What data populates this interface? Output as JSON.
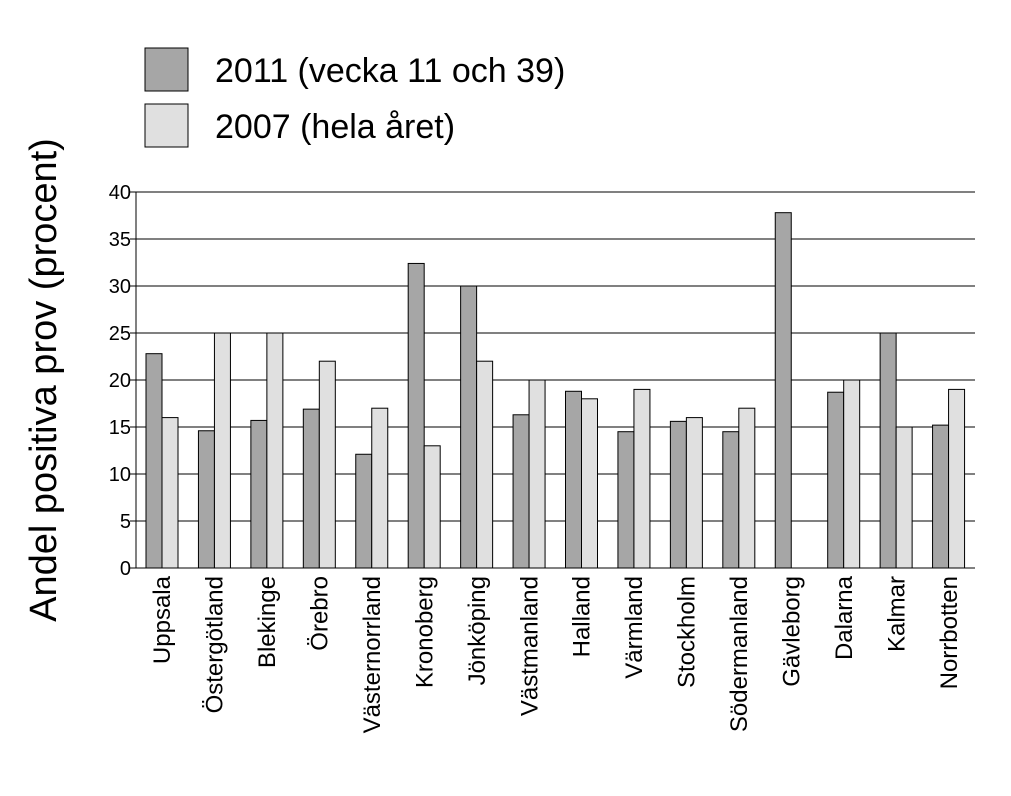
{
  "chart_data": {
    "type": "bar",
    "title": "",
    "xlabel": "",
    "ylabel": "Andel positiva prov (procent)",
    "ylim": [
      0,
      40
    ],
    "yticks": [
      0,
      5,
      10,
      15,
      20,
      25,
      30,
      35,
      40
    ],
    "grid": true,
    "legend_position": "top-left",
    "categories": [
      "Uppsala",
      "Östergötland",
      "Blekinge",
      "Örebro",
      "Västernorrland",
      "Kronoberg",
      "Jönköping",
      "Västmanland",
      "Halland",
      "Värmland",
      "Stockholm",
      "Södermanland",
      "Gävleborg",
      "Dalarna",
      "Kalmar",
      "Norrbotten"
    ],
    "series": [
      {
        "name": "2011 (vecka 11 och 39)",
        "color": "#a6a6a6",
        "values": [
          22.8,
          14.6,
          15.7,
          16.9,
          12.1,
          32.4,
          30.0,
          16.3,
          18.8,
          14.5,
          15.6,
          14.5,
          37.8,
          18.7,
          25.0,
          15.2
        ]
      },
      {
        "name": "2007 (hela året)",
        "color": "#e0e0e0",
        "values": [
          16.0,
          25.0,
          25.0,
          22.0,
          17.0,
          13.0,
          22.0,
          20.0,
          18.0,
          19.0,
          16.0,
          17.0,
          null,
          20.0,
          15.0,
          19.0
        ]
      }
    ]
  }
}
